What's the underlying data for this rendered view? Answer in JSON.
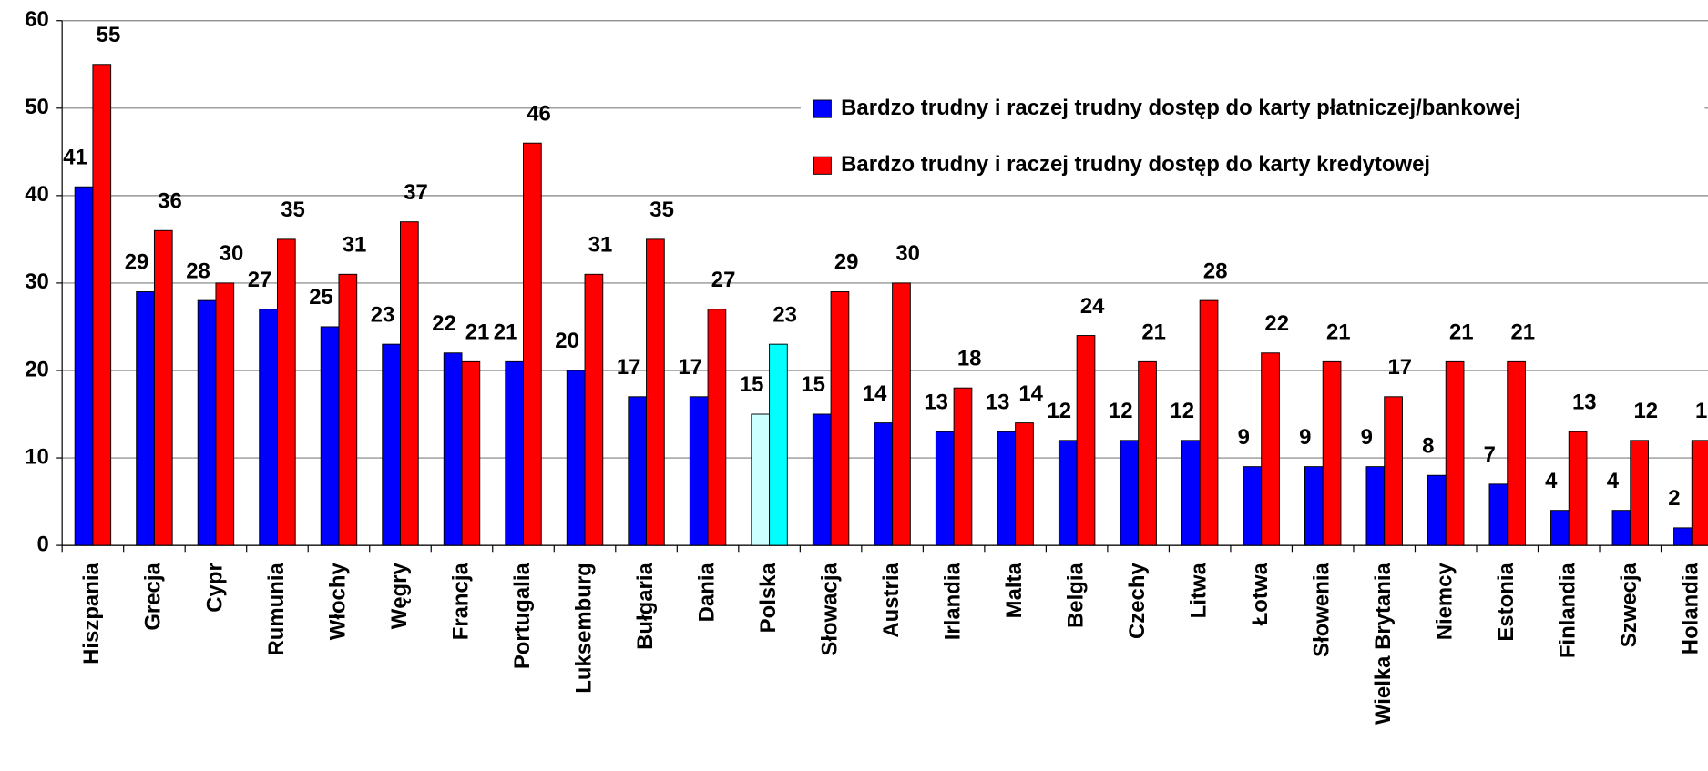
{
  "chart_data": {
    "type": "bar",
    "categories": [
      "Hiszpania",
      "Grecja",
      "Cypr",
      "Rumunia",
      "Włochy",
      "Węgry",
      "Francja",
      "Portugalia",
      "Luksemburg",
      "Bułgaria",
      "Dania",
      "Polska",
      "Słowacja",
      "Austria",
      "Irlandia",
      "Malta",
      "Belgia",
      "Czechy",
      "Litwa",
      "Łotwa",
      "Słowenia",
      "Wielka Brytania",
      "Niemcy",
      "Estonia",
      "Finlandia",
      "Szwecja",
      "Holandia"
    ],
    "series": [
      {
        "name": "Bardzo trudny i raczej trudny dostęp do karty płatniczej/bankowej",
        "color": "#0000ff",
        "colors": [
          "#0000ff",
          "#0000ff",
          "#0000ff",
          "#0000ff",
          "#0000ff",
          "#0000ff",
          "#0000ff",
          "#0000ff",
          "#0000ff",
          "#0000ff",
          "#0000ff",
          "#ccffff",
          "#0000ff",
          "#0000ff",
          "#0000ff",
          "#0000ff",
          "#0000ff",
          "#0000ff",
          "#0000ff",
          "#0000ff",
          "#0000ff",
          "#0000ff",
          "#0000ff",
          "#0000ff",
          "#0000ff",
          "#0000ff",
          "#0000ff"
        ],
        "values": [
          41,
          29,
          28,
          27,
          25,
          23,
          22,
          21,
          20,
          17,
          17,
          15,
          15,
          14,
          13,
          13,
          12,
          12,
          12,
          9,
          9,
          9,
          8,
          7,
          4,
          4,
          2
        ]
      },
      {
        "name": "Bardzo trudny i raczej trudny dostęp do karty kredytowej",
        "color": "#ff0000",
        "colors": [
          "#ff0000",
          "#ff0000",
          "#ff0000",
          "#ff0000",
          "#ff0000",
          "#ff0000",
          "#ff0000",
          "#ff0000",
          "#ff0000",
          "#ff0000",
          "#ff0000",
          "#00ffff",
          "#ff0000",
          "#ff0000",
          "#ff0000",
          "#ff0000",
          "#ff0000",
          "#ff0000",
          "#ff0000",
          "#ff0000",
          "#ff0000",
          "#ff0000",
          "#ff0000",
          "#ff0000",
          "#ff0000",
          "#ff0000",
          "#ff0000"
        ],
        "values": [
          55,
          36,
          30,
          35,
          31,
          37,
          21,
          46,
          31,
          35,
          27,
          23,
          29,
          30,
          18,
          14,
          24,
          21,
          28,
          22,
          21,
          17,
          21,
          21,
          13,
          12,
          12
        ]
      }
    ],
    "ylim": [
      0,
      60
    ],
    "yticks": [
      0,
      10,
      20,
      30,
      40,
      50,
      60
    ],
    "grid": true,
    "legend": "top-right"
  }
}
